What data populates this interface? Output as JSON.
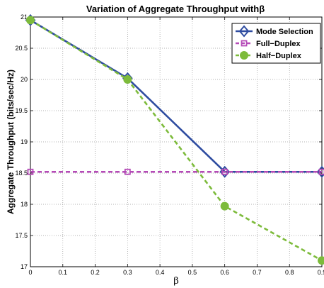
{
  "chart_data": {
    "type": "line",
    "title": "Variation of Aggregate Throughput withβ",
    "xlabel": "β",
    "ylabel": "Aggregate Throughput (bits/sec/Hz)",
    "xlim": [
      0,
      0.9
    ],
    "ylim": [
      17,
      21
    ],
    "xticks": [
      0,
      0.1,
      0.2,
      0.3,
      0.4,
      0.5,
      0.6,
      0.7,
      0.8,
      0.9
    ],
    "xtick_labels": [
      "0",
      "0.1",
      "0.2",
      "0.3",
      "0.4",
      "0.5",
      "0.6",
      "0.7",
      "0.8",
      "0.9"
    ],
    "yticks": [
      17,
      17.5,
      18,
      18.5,
      19,
      19.5,
      20,
      20.5,
      21
    ],
    "ytick_labels": [
      "17",
      "17.5",
      "18",
      "18.5",
      "19",
      "19.5",
      "20",
      "20.5",
      "21"
    ],
    "grid": true,
    "legend_position": "top-right",
    "x": [
      0,
      0.3,
      0.6,
      0.9
    ],
    "series": [
      {
        "name": "Mode Selection",
        "color": "#2E4CA0",
        "marker": "diamond",
        "line_style": "solid",
        "values": [
          20.95,
          20.02,
          18.52,
          18.52
        ]
      },
      {
        "name": "Full−Duplex",
        "color": "#B54AB7",
        "marker": "square",
        "line_style": "dashed",
        "values": [
          18.52,
          18.52,
          18.52,
          18.52
        ]
      },
      {
        "name": "Half−Duplex",
        "color": "#7DBB3B",
        "marker": "circle",
        "line_style": "dashed",
        "values": [
          20.95,
          20.0,
          17.97,
          17.1
        ]
      }
    ]
  }
}
